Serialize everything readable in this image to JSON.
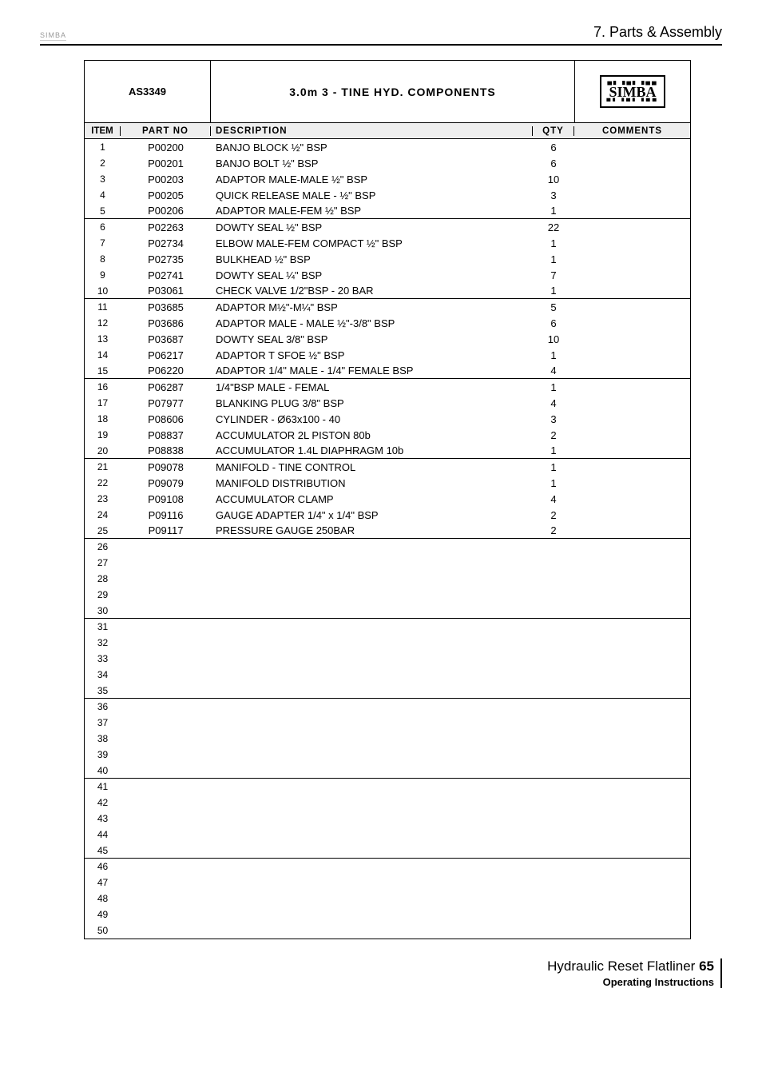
{
  "header": {
    "small_logo": "SIMBA",
    "section_title": "7. Parts & Assembly"
  },
  "table_header": {
    "code": "AS3349",
    "title": "3.0m 3 - TINE HYD. COMPONENTS",
    "logo": "SIMBA"
  },
  "columns": {
    "item": "ITEM",
    "part": "PART NO",
    "desc": "DESCRIPTION",
    "qty": "QTY",
    "comm": "COMMENTS"
  },
  "rows": [
    {
      "i": "1",
      "p": "P00200",
      "d": "BANJO BLOCK ½\" BSP",
      "q": "6",
      "sep": false
    },
    {
      "i": "2",
      "p": "P00201",
      "d": "BANJO BOLT ½\" BSP",
      "q": "6",
      "sep": false
    },
    {
      "i": "3",
      "p": "P00203",
      "d": "ADAPTOR MALE-MALE ½\" BSP",
      "q": "10",
      "sep": false
    },
    {
      "i": "4",
      "p": "P00205",
      "d": "QUICK RELEASE MALE - ½\" BSP",
      "q": "3",
      "sep": false
    },
    {
      "i": "5",
      "p": "P00206",
      "d": "ADAPTOR MALE-FEM ½\" BSP",
      "q": "1",
      "sep": true
    },
    {
      "i": "6",
      "p": "P02263",
      "d": "DOWTY SEAL ½\" BSP",
      "q": "22",
      "sep": false
    },
    {
      "i": "7",
      "p": "P02734",
      "d": "ELBOW MALE-FEM COMPACT ½\" BSP",
      "q": "1",
      "sep": false
    },
    {
      "i": "8",
      "p": "P02735",
      "d": "BULKHEAD ½\" BSP",
      "q": "1",
      "sep": false
    },
    {
      "i": "9",
      "p": "P02741",
      "d": "DOWTY SEAL ¼\" BSP",
      "q": "7",
      "sep": false
    },
    {
      "i": "10",
      "p": "P03061",
      "d": "CHECK VALVE 1/2\"BSP - 20 BAR",
      "q": "1",
      "sep": true
    },
    {
      "i": "11",
      "p": "P03685",
      "d": "ADAPTOR M½\"-M¼\" BSP",
      "q": "5",
      "sep": false
    },
    {
      "i": "12",
      "p": "P03686",
      "d": "ADAPTOR MALE - MALE ½\"-3/8\" BSP",
      "q": "6",
      "sep": false
    },
    {
      "i": "13",
      "p": "P03687",
      "d": "DOWTY SEAL 3/8\" BSP",
      "q": "10",
      "sep": false
    },
    {
      "i": "14",
      "p": "P06217",
      "d": "ADAPTOR T SFOE ½\" BSP",
      "q": "1",
      "sep": false
    },
    {
      "i": "15",
      "p": "P06220",
      "d": "ADAPTOR 1/4\" MALE - 1/4\" FEMALE BSP",
      "q": "4",
      "sep": true
    },
    {
      "i": "16",
      "p": "P06287",
      "d": "1/4\"BSP MALE - FEMAL",
      "q": "1",
      "sep": false
    },
    {
      "i": "17",
      "p": "P07977",
      "d": "BLANKING PLUG 3/8\" BSP",
      "q": "4",
      "sep": false
    },
    {
      "i": "18",
      "p": "P08606",
      "d": "CYLINDER - Ø63x100 - 40",
      "q": "3",
      "sep": false
    },
    {
      "i": "19",
      "p": "P08837",
      "d": "ACCUMULATOR 2L PISTON 80b",
      "q": "2",
      "sep": false
    },
    {
      "i": "20",
      "p": "P08838",
      "d": "ACCUMULATOR 1.4L DIAPHRAGM 10b",
      "q": "1",
      "sep": true
    },
    {
      "i": "21",
      "p": "P09078",
      "d": "MANIFOLD - TINE CONTROL",
      "q": "1",
      "sep": false
    },
    {
      "i": "22",
      "p": "P09079",
      "d": "MANIFOLD DISTRIBUTION",
      "q": "1",
      "sep": false
    },
    {
      "i": "23",
      "p": "P09108",
      "d": "ACCUMULATOR CLAMP",
      "q": "4",
      "sep": false
    },
    {
      "i": "24",
      "p": "P09116",
      "d": "GAUGE ADAPTER 1/4\" x 1/4\" BSP",
      "q": "2",
      "sep": false
    },
    {
      "i": "25",
      "p": "P09117",
      "d": "PRESSURE GAUGE 250BAR",
      "q": "2",
      "sep": true
    },
    {
      "i": "26",
      "p": "",
      "d": "",
      "q": "",
      "sep": false
    },
    {
      "i": "27",
      "p": "",
      "d": "",
      "q": "",
      "sep": false
    },
    {
      "i": "28",
      "p": "",
      "d": "",
      "q": "",
      "sep": false
    },
    {
      "i": "29",
      "p": "",
      "d": "",
      "q": "",
      "sep": false
    },
    {
      "i": "30",
      "p": "",
      "d": "",
      "q": "",
      "sep": true
    },
    {
      "i": "31",
      "p": "",
      "d": "",
      "q": "",
      "sep": false
    },
    {
      "i": "32",
      "p": "",
      "d": "",
      "q": "",
      "sep": false
    },
    {
      "i": "33",
      "p": "",
      "d": "",
      "q": "",
      "sep": false
    },
    {
      "i": "34",
      "p": "",
      "d": "",
      "q": "",
      "sep": false
    },
    {
      "i": "35",
      "p": "",
      "d": "",
      "q": "",
      "sep": true
    },
    {
      "i": "36",
      "p": "",
      "d": "",
      "q": "",
      "sep": false
    },
    {
      "i": "37",
      "p": "",
      "d": "",
      "q": "",
      "sep": false
    },
    {
      "i": "38",
      "p": "",
      "d": "",
      "q": "",
      "sep": false
    },
    {
      "i": "39",
      "p": "",
      "d": "",
      "q": "",
      "sep": false
    },
    {
      "i": "40",
      "p": "",
      "d": "",
      "q": "",
      "sep": true
    },
    {
      "i": "41",
      "p": "",
      "d": "",
      "q": "",
      "sep": false
    },
    {
      "i": "42",
      "p": "",
      "d": "",
      "q": "",
      "sep": false
    },
    {
      "i": "43",
      "p": "",
      "d": "",
      "q": "",
      "sep": false
    },
    {
      "i": "44",
      "p": "",
      "d": "",
      "q": "",
      "sep": false
    },
    {
      "i": "45",
      "p": "",
      "d": "",
      "q": "",
      "sep": true
    },
    {
      "i": "46",
      "p": "",
      "d": "",
      "q": "",
      "sep": false
    },
    {
      "i": "47",
      "p": "",
      "d": "",
      "q": "",
      "sep": false
    },
    {
      "i": "48",
      "p": "",
      "d": "",
      "q": "",
      "sep": false
    },
    {
      "i": "49",
      "p": "",
      "d": "",
      "q": "",
      "sep": false
    },
    {
      "i": "50",
      "p": "",
      "d": "",
      "q": "",
      "sep": false
    }
  ],
  "footer": {
    "title_prefix": "Hydraulic Reset Flatliner",
    "page_no": "65",
    "subtitle": "Operating Instructions"
  }
}
